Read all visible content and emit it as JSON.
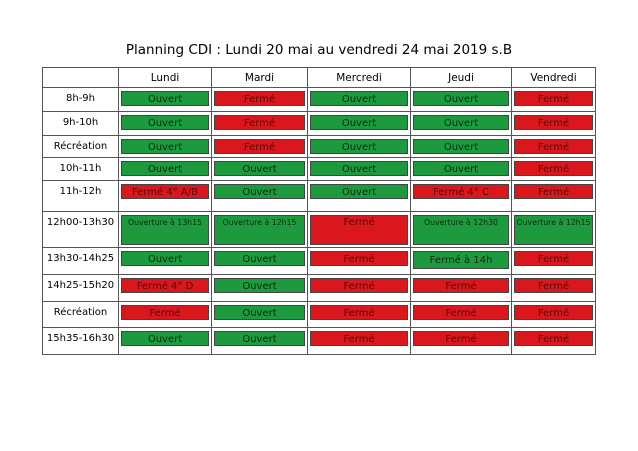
{
  "title": "Planning CDI : Lundi 20 mai au vendredi 24 mai 2019 s.B",
  "days": [
    "Lundi",
    "Mardi",
    "Mercredi",
    "Jeudi",
    "Vendredi"
  ],
  "colors": {
    "open": "#1e9a3e",
    "closed": "#d9171d"
  },
  "rows": [
    {
      "slot": "8h-9h",
      "cells": [
        {
          "text": "Ouvert",
          "state": "open"
        },
        {
          "text": "Fermé",
          "state": "closed"
        },
        {
          "text": "Ouvert",
          "state": "open"
        },
        {
          "text": "Ouvert",
          "state": "open"
        },
        {
          "text": "Fermé",
          "state": "closed"
        }
      ]
    },
    {
      "slot": "9h-10h",
      "cells": [
        {
          "text": "Ouvert",
          "state": "open"
        },
        {
          "text": "Fermé",
          "state": "closed"
        },
        {
          "text": "Ouvert",
          "state": "open"
        },
        {
          "text": "Ouvert",
          "state": "open"
        },
        {
          "text": "Fermé",
          "state": "closed"
        }
      ]
    },
    {
      "slot": "Récréation",
      "cells": [
        {
          "text": "Ouvert",
          "state": "open"
        },
        {
          "text": "Fermé",
          "state": "closed"
        },
        {
          "text": "Ouvert",
          "state": "open"
        },
        {
          "text": "Ouvert",
          "state": "open"
        },
        {
          "text": "Fermé",
          "state": "closed"
        }
      ]
    },
    {
      "slot": "10h-11h",
      "cells": [
        {
          "text": "Ouvert",
          "state": "open"
        },
        {
          "text": "Ouvert",
          "state": "open"
        },
        {
          "text": "Ouvert",
          "state": "open"
        },
        {
          "text": "Ouvert",
          "state": "open"
        },
        {
          "text": "Fermé",
          "state": "closed"
        }
      ]
    },
    {
      "slot": "11h-12h",
      "cells": [
        {
          "text": "Fermé 4° A/B",
          "state": "closed"
        },
        {
          "text": "Ouvert",
          "state": "open"
        },
        {
          "text": "Ouvert",
          "state": "open"
        },
        {
          "text": "Fermé 4° C",
          "state": "closed"
        },
        {
          "text": "Fermé",
          "state": "closed"
        }
      ]
    },
    {
      "slot": "12h00-13h30",
      "cells": [
        {
          "text": "Ouverture à 13h15",
          "state": "open"
        },
        {
          "text": "Ouverture à 12h15",
          "state": "open"
        },
        {
          "text": "Fermé",
          "state": "closed"
        },
        {
          "text": "Ouverture à 12h30",
          "state": "open"
        },
        {
          "text": "Ouverture à 12h15",
          "state": "open"
        }
      ]
    },
    {
      "slot": "13h30-14h25",
      "cells": [
        {
          "text": "Ouvert",
          "state": "open"
        },
        {
          "text": "Ouvert",
          "state": "open"
        },
        {
          "text": "Fermé",
          "state": "closed"
        },
        {
          "text": "Fermé à 14h",
          "state": "open"
        },
        {
          "text": "Fermé",
          "state": "closed"
        }
      ]
    },
    {
      "slot": "14h25-15h20",
      "cells": [
        {
          "text": "Fermé 4° D",
          "state": "closed"
        },
        {
          "text": "Ouvert",
          "state": "open"
        },
        {
          "text": "Fermé",
          "state": "closed"
        },
        {
          "text": "Fermé",
          "state": "closed"
        },
        {
          "text": "Fermé",
          "state": "closed"
        }
      ]
    },
    {
      "slot": "Récréation",
      "cells": [
        {
          "text": "Fermé",
          "state": "closed"
        },
        {
          "text": "Ouvert",
          "state": "open"
        },
        {
          "text": "Fermé",
          "state": "closed"
        },
        {
          "text": "Fermé",
          "state": "closed"
        },
        {
          "text": "Fermé",
          "state": "closed"
        }
      ]
    },
    {
      "slot": "15h35-16h30",
      "cells": [
        {
          "text": "Ouvert",
          "state": "open"
        },
        {
          "text": "Ouvert",
          "state": "open"
        },
        {
          "text": "Fermé",
          "state": "closed"
        },
        {
          "text": "Fermé",
          "state": "closed"
        },
        {
          "text": "Fermé",
          "state": "closed"
        }
      ]
    }
  ]
}
